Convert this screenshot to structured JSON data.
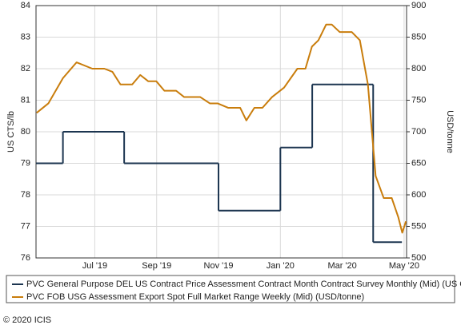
{
  "chart_data": {
    "type": "line",
    "y_label": "US CTS/lb",
    "y2_label": "USD/tonne",
    "xlim": [
      5.1,
      17.08
    ],
    "xticks": [
      {
        "value": 7,
        "label": "Jul '19"
      },
      {
        "value": 9,
        "label": "Sep '19"
      },
      {
        "value": 11,
        "label": "Nov '19"
      },
      {
        "value": 13,
        "label": "Jan '20"
      },
      {
        "value": 15,
        "label": "Mar '20"
      },
      {
        "value": 17,
        "label": "May '20"
      }
    ],
    "ylim": [
      76,
      84
    ],
    "yticks": [
      76,
      77,
      78,
      79,
      80,
      81,
      82,
      83,
      84
    ],
    "y2lim": [
      500,
      900
    ],
    "y2ticks": [
      500,
      550,
      600,
      650,
      700,
      750,
      800,
      850,
      900
    ],
    "grid": true,
    "series": [
      {
        "name": "PVC General Purpose DEL US Contract Price Assessment Contract Month Contract Survey Monthly (Mid) (US CTS/lb)",
        "color": "#1c3550",
        "step": true,
        "x": [
          5.1,
          5.97,
          7.95,
          11,
          13,
          14.03,
          16,
          16.93
        ],
        "values": [
          79,
          80,
          79,
          77.5,
          79.5,
          81.5,
          76.5,
          76.5
        ]
      },
      {
        "name": "PVC FOB USG Assessment Export Spot Full Market Range Weekly (Mid) (USD/tonne)",
        "color": "#c97d0c",
        "axis": "y2",
        "x": [
          5.12,
          5.5,
          5.97,
          6.41,
          6.92,
          7.31,
          7.57,
          7.83,
          8.21,
          8.47,
          8.73,
          8.99,
          9.25,
          9.63,
          9.89,
          10.41,
          10.72,
          10.97,
          11.31,
          11.7,
          11.9,
          12.16,
          12.42,
          12.73,
          13.12,
          13.55,
          13.81,
          14.02,
          14.23,
          14.48,
          14.66,
          14.92,
          15.31,
          15.57,
          15.83,
          16.08,
          16.34,
          16.6,
          16.81,
          16.94,
          17.06
        ],
        "values": [
          730,
          745,
          785,
          810,
          800,
          800,
          795,
          775,
          775,
          790,
          780,
          780,
          765,
          765,
          755,
          755,
          745,
          745,
          738,
          738,
          718,
          738,
          738,
          755,
          770,
          800,
          800,
          835,
          845,
          870,
          870,
          858,
          858,
          845,
          775,
          630,
          595,
          595,
          565,
          540,
          558
        ]
      }
    ],
    "footer": "© 2020 ICIS"
  }
}
